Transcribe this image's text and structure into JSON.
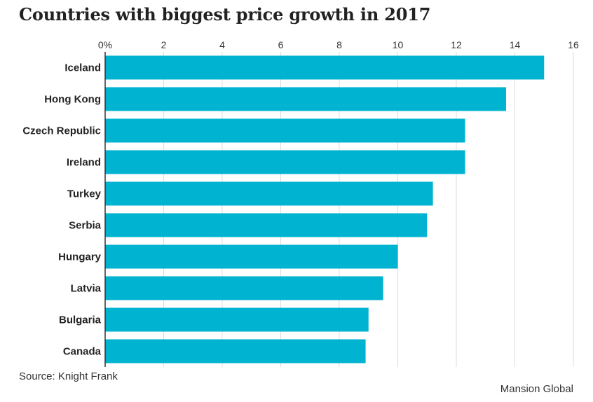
{
  "chart_data": {
    "type": "bar",
    "orientation": "horizontal",
    "title": "Countries with biggest price growth in 2017",
    "categories": [
      "Iceland",
      "Hong Kong",
      "Czech Republic",
      "Ireland",
      "Turkey",
      "Serbia",
      "Hungary",
      "Latvia",
      "Bulgaria",
      "Canada"
    ],
    "values": [
      15.0,
      13.7,
      12.3,
      12.3,
      11.2,
      11.0,
      10.0,
      9.5,
      9.0,
      8.9
    ],
    "xlim": [
      0,
      16
    ],
    "x_ticks": [
      0,
      2,
      4,
      6,
      8,
      10,
      12,
      14,
      16
    ],
    "x_tick_labels": [
      "0%",
      "2",
      "4",
      "6",
      "8",
      "10",
      "12",
      "14",
      "16"
    ],
    "x_axis_position": "top",
    "grid": true,
    "bar_color": "#00b3d0",
    "xlabel": "",
    "ylabel": ""
  },
  "footer": {
    "source": "Source: Knight Frank",
    "credit": "Mansion Global"
  }
}
